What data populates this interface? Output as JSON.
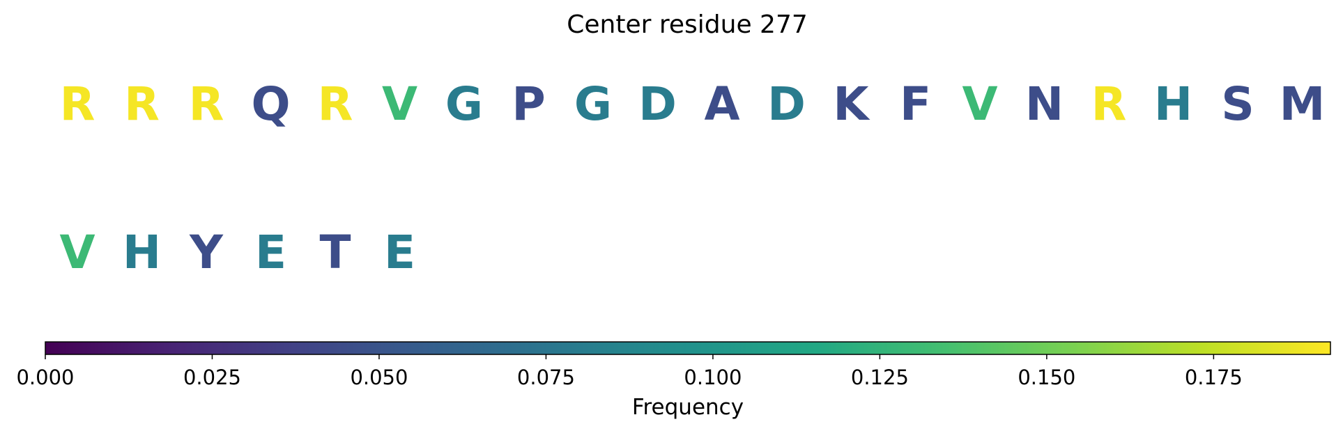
{
  "chart_data": {
    "type": "sequence-letters-colored",
    "title": "Center residue 277",
    "rows": [
      {
        "letters": [
          "R",
          "R",
          "R",
          "Q",
          "R",
          "V",
          "G",
          "P",
          "G",
          "D",
          "A",
          "D",
          "K",
          "F",
          "V",
          "N",
          "R",
          "H",
          "S",
          "M"
        ],
        "frequencies": [
          0.19,
          0.19,
          0.19,
          0.045,
          0.19,
          0.13,
          0.08,
          0.045,
          0.08,
          0.08,
          0.045,
          0.08,
          0.045,
          0.045,
          0.13,
          0.045,
          0.19,
          0.08,
          0.045,
          0.045
        ]
      },
      {
        "letters": [
          "V",
          "H",
          "Y",
          "E",
          "T",
          "E"
        ],
        "frequencies": [
          0.13,
          0.08,
          0.045,
          0.08,
          0.045,
          0.08
        ]
      }
    ],
    "colorbar": {
      "label": "Frequency",
      "colormap": "viridis",
      "range": [
        0.0,
        0.1925
      ],
      "ticks": [
        0.0,
        0.025,
        0.05,
        0.075,
        0.1,
        0.125,
        0.15,
        0.175
      ],
      "tick_labels": [
        "0.000",
        "0.025",
        "0.050",
        "0.075",
        "0.100",
        "0.125",
        "0.150",
        "0.175"
      ]
    }
  }
}
